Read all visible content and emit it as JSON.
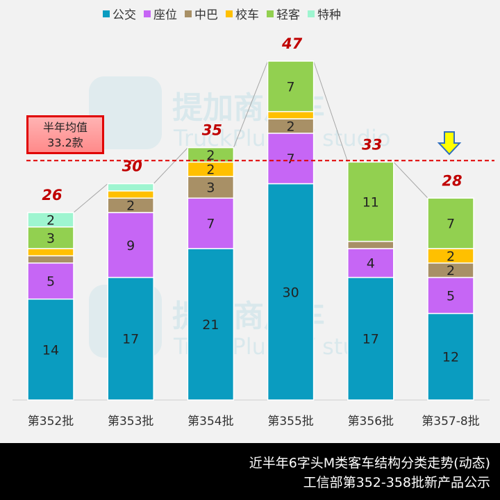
{
  "chart_data": {
    "type": "bar",
    "stacked": true,
    "categories": [
      "第352批",
      "第353批",
      "第354批",
      "第355批",
      "第356批",
      "第357-8批"
    ],
    "series": [
      {
        "name": "公交",
        "color": "#0a9cc0",
        "values": [
          14,
          17,
          21,
          30,
          17,
          12
        ]
      },
      {
        "name": "座位",
        "color": "#c666f5",
        "values": [
          5,
          9,
          7,
          7,
          4,
          5
        ]
      },
      {
        "name": "中巴",
        "color": "#a89066",
        "values": [
          1,
          2,
          3,
          2,
          1,
          2
        ]
      },
      {
        "name": "校车",
        "color": "#ffc000",
        "values": [
          1,
          1,
          2,
          1,
          0,
          2
        ]
      },
      {
        "name": "轻客",
        "color": "#92d050",
        "values": [
          3,
          0,
          2,
          7,
          11,
          7
        ]
      },
      {
        "name": "特种",
        "color": "#9ef5d0",
        "values": [
          2,
          1,
          0,
          0,
          0,
          0
        ]
      }
    ],
    "totals": [
      26,
      30,
      35,
      47,
      33,
      28
    ],
    "average": {
      "value": 33.2,
      "label_line1": "半年均值",
      "label_line2": "33.2款",
      "color": "#e00000"
    },
    "ylim": [
      0,
      47
    ],
    "legend": "top",
    "grid": false
  },
  "footer": {
    "line1": "近半年6字头M类客车结构分类走势(动态)",
    "line2": "工信部第352-358批新产品公示"
  },
  "watermark": {
    "cn": "提加商用车",
    "en": "TruckPlus CV studio"
  },
  "highlight_icon": "down-arrow-icon"
}
